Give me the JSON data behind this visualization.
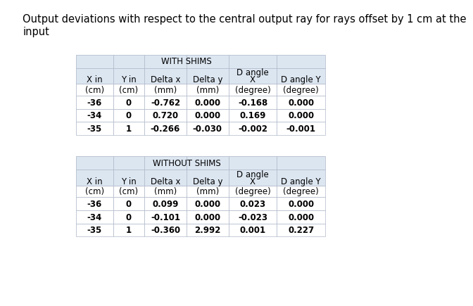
{
  "title": "Output deviations with respect to the central output ray for rays offset by 1 cm at the\ninput",
  "title_fontsize": 10.5,
  "with_shims": {
    "header_label": "WITH SHIMS",
    "rows": [
      [
        "-36",
        "0",
        "-0.762",
        "0.000",
        "-0.168",
        "0.000"
      ],
      [
        "-34",
        "0",
        "0.720",
        "0.000",
        "0.169",
        "0.000"
      ],
      [
        "-35",
        "1",
        "-0.266",
        "-0.030",
        "-0.002",
        "-0.001"
      ]
    ]
  },
  "without_shims": {
    "header_label": "WITHOUT SHIMS",
    "rows": [
      [
        "-36",
        "0",
        "0.099",
        "0.000",
        "0.023",
        "0.000"
      ],
      [
        "-34",
        "0",
        "-0.101",
        "0.000",
        "-0.023",
        "0.000"
      ],
      [
        "-35",
        "1",
        "-0.360",
        "2.992",
        "0.001",
        "0.227"
      ]
    ]
  },
  "bg_color": "#dce6f1",
  "cell_bg": "#ffffff",
  "font_size": 8.5,
  "col_names": [
    "X in",
    "Y in",
    "Delta x",
    "Delta y",
    "X",
    "D angle Y"
  ],
  "col_units": [
    "(cm)",
    "(cm)",
    "(mm)",
    "(mm)",
    "(degree)",
    "(degree)"
  ]
}
